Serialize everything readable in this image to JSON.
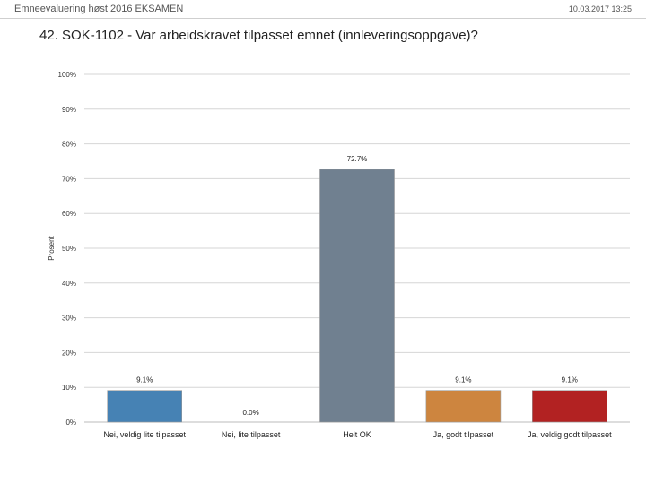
{
  "header": {
    "survey_title": "Emneevaluering høst 2016 EKSAMEN",
    "timestamp": "10.03.2017 13:25"
  },
  "question": {
    "title": "42. SOK-1102 - Var arbeidskravet tilpasset emnet (innleveringsoppgave)?"
  },
  "chart_data": {
    "type": "bar",
    "categories": [
      "Nei, veldig lite tilpasset",
      "Nei, lite tilpasset",
      "Helt OK",
      "Ja, godt tilpasset",
      "Ja, veldig godt tilpasset"
    ],
    "values": [
      9.1,
      0.0,
      72.7,
      9.1,
      9.1
    ],
    "value_labels": [
      "9.1%",
      "0.0%",
      "72.7%",
      "9.1%",
      "9.1%"
    ],
    "colors": [
      "#4682b4",
      "#4682b4",
      "#708090",
      "#cd853f",
      "#b22222"
    ],
    "ylabel": "Prosent",
    "ylim": [
      0,
      100
    ],
    "yticks": [
      0,
      10,
      20,
      30,
      40,
      50,
      60,
      70,
      80,
      90,
      100
    ],
    "ytick_labels": [
      "0%",
      "10%",
      "20%",
      "30%",
      "40%",
      "50%",
      "60%",
      "70%",
      "80%",
      "90%",
      "100%"
    ],
    "grid": true,
    "gridline_color": "#d6d6d6"
  }
}
